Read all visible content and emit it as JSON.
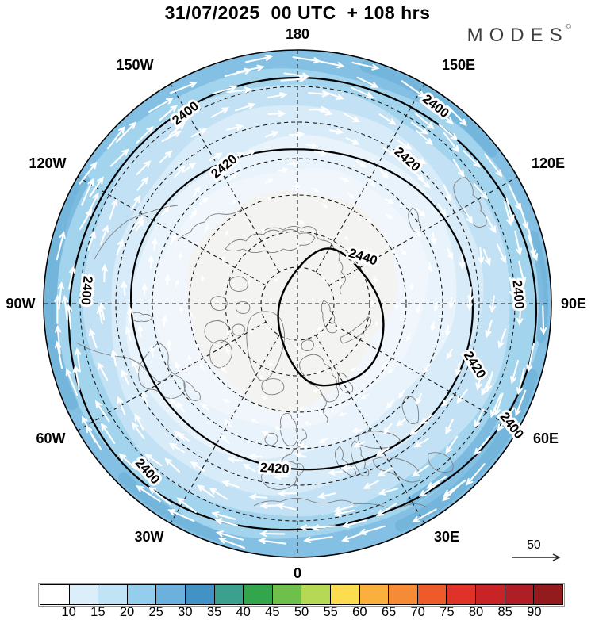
{
  "header": {
    "title": "31/07/2025  00 UTC  + 108 hrs",
    "logo_text": "MODES",
    "logo_mark": "©"
  },
  "chart_data": {
    "type": "contour-map",
    "projection": "north-polar-stereographic",
    "title": "31/07/2025  00 UTC  + 108 hrs",
    "contours": [
      {
        "level": "2400"
      },
      {
        "level": "2420"
      },
      {
        "level": "2440"
      }
    ],
    "longitude_labels": [
      "180",
      "150W",
      "150E",
      "120W",
      "120E",
      "90W",
      "90E",
      "60W",
      "60E",
      "30W",
      "30E",
      "0"
    ],
    "colorbar": {
      "tick_labels": [
        "10",
        "15",
        "20",
        "25",
        "30",
        "35",
        "40",
        "45",
        "50",
        "55",
        "60",
        "65",
        "70",
        "75",
        "80",
        "85",
        "90"
      ],
      "colors": [
        "#ffffff",
        "#dbeef9",
        "#c1e3f6",
        "#95cdec",
        "#6cb0dd",
        "#4292c6",
        "#3ba08d",
        "#33a54c",
        "#6ec04a",
        "#b5d954",
        "#fbdd4f",
        "#fbaf3d",
        "#f68b35",
        "#ee5a2a",
        "#e03228",
        "#c82327",
        "#ae1e24",
        "#931b1e"
      ]
    },
    "shading_band_colors": [
      "#84c0e3",
      "#a3d4ee",
      "#c2e1f4",
      "#d8ebf8",
      "#e9f3fb",
      "#f1f6fc",
      "#f3f3f1"
    ],
    "shading_dark_patch_color": "#6fb1d9",
    "wind_arrow_color": "#ffffff",
    "reference_arrow_label": "50"
  }
}
